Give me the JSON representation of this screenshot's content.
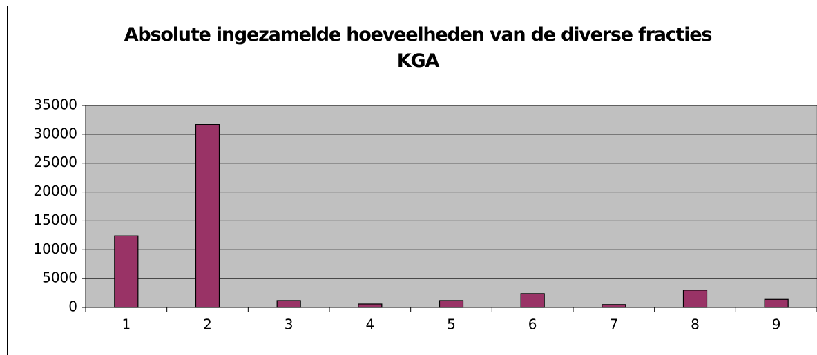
{
  "chart_data": {
    "type": "bar",
    "title": "Absolute ingezamelde hoeveelheden van de diverse fracties KGA",
    "categories": [
      "1",
      "2",
      "3",
      "4",
      "5",
      "6",
      "7",
      "8",
      "9"
    ],
    "values": [
      12400,
      31700,
      1200,
      600,
      1200,
      2400,
      500,
      3000,
      1400
    ],
    "color": "#993366",
    "ylim": [
      0,
      35000
    ],
    "yticks": [
      0,
      5000,
      10000,
      15000,
      20000,
      25000,
      30000,
      35000
    ],
    "grid": true
  }
}
